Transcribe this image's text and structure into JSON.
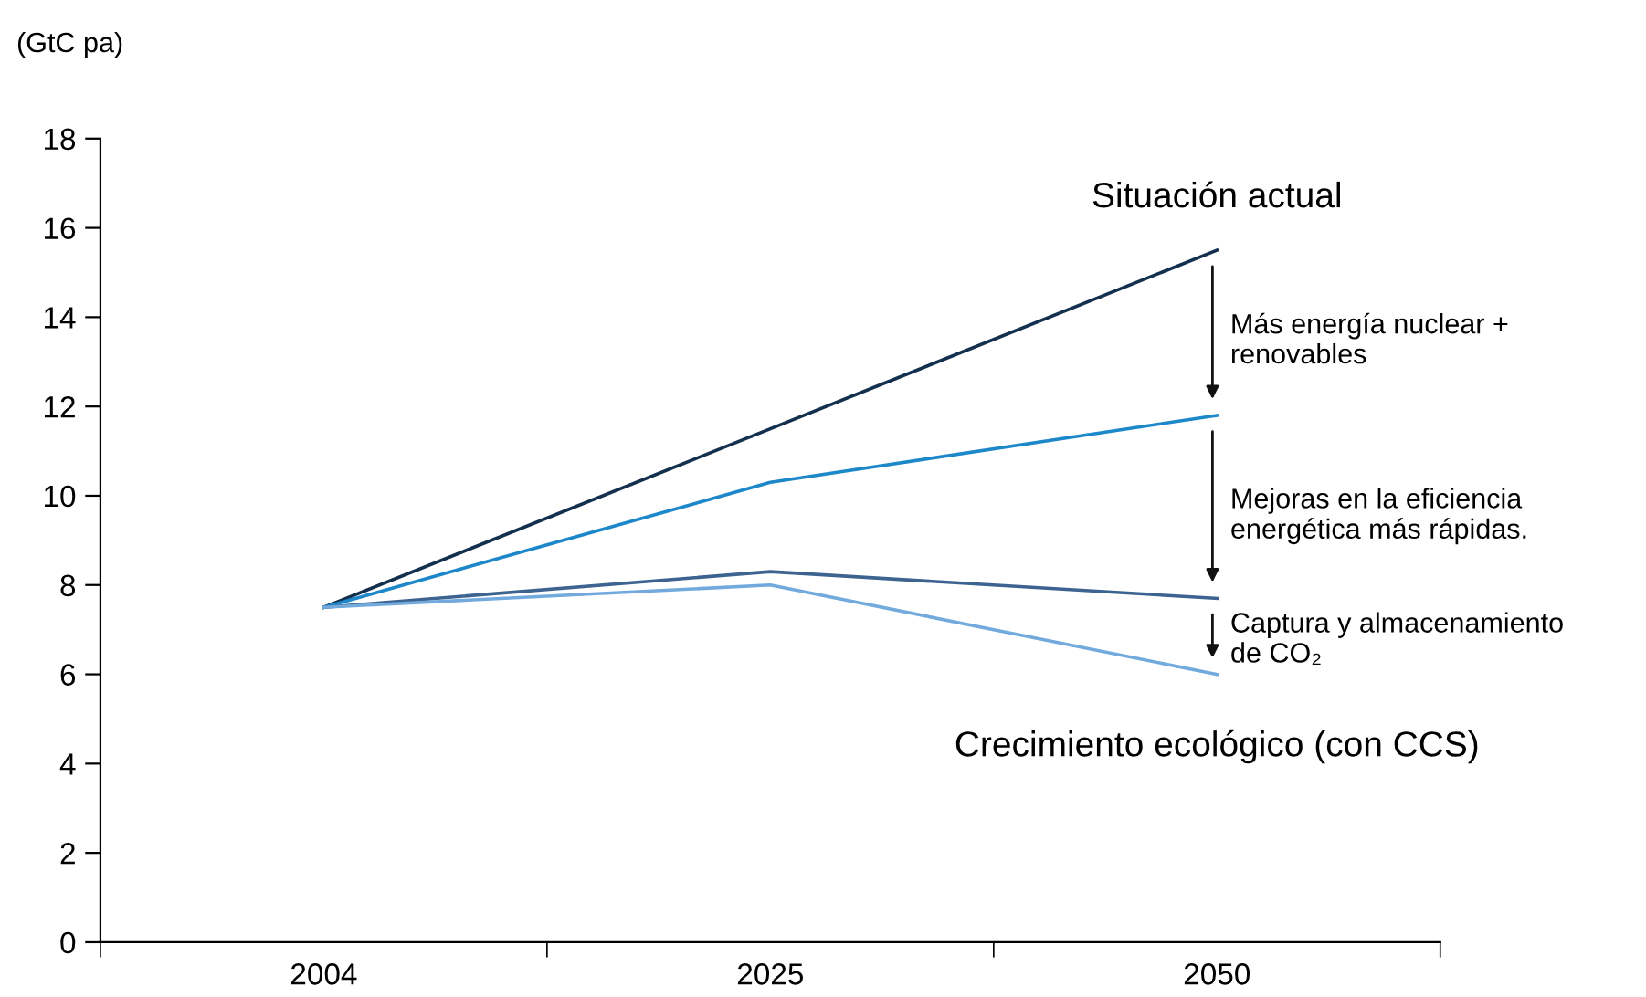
{
  "chart_data": {
    "type": "line",
    "ylabel": "(GtC pa)",
    "categories": [
      "2004",
      "2025",
      "2050"
    ],
    "series": [
      {
        "name": "Situación actual",
        "color": "#14304f",
        "values": [
          7.5,
          11.5,
          15.5
        ]
      },
      {
        "color": "#1c87c9",
        "values": [
          7.5,
          10.3,
          11.8
        ]
      },
      {
        "color": "#3d6390",
        "values": [
          7.5,
          8.3,
          7.7
        ]
      },
      {
        "name": "Crecimiento ecológico (con CCS)",
        "color": "#72aadd",
        "values": [
          7.5,
          8.0,
          6.0
        ]
      }
    ],
    "annotations": [
      "Más energía nuclear +\nrenovables",
      "Mejoras en la eficiencia\nenergética más rápidas.",
      "Captura y almacenamiento\nde CO₂"
    ],
    "ylim": [
      0,
      18
    ],
    "yticks": [
      0,
      2,
      4,
      6,
      8,
      10,
      12,
      14,
      16,
      18
    ],
    "grid": false,
    "legend": false,
    "marker": "none",
    "line_style": "solid"
  }
}
